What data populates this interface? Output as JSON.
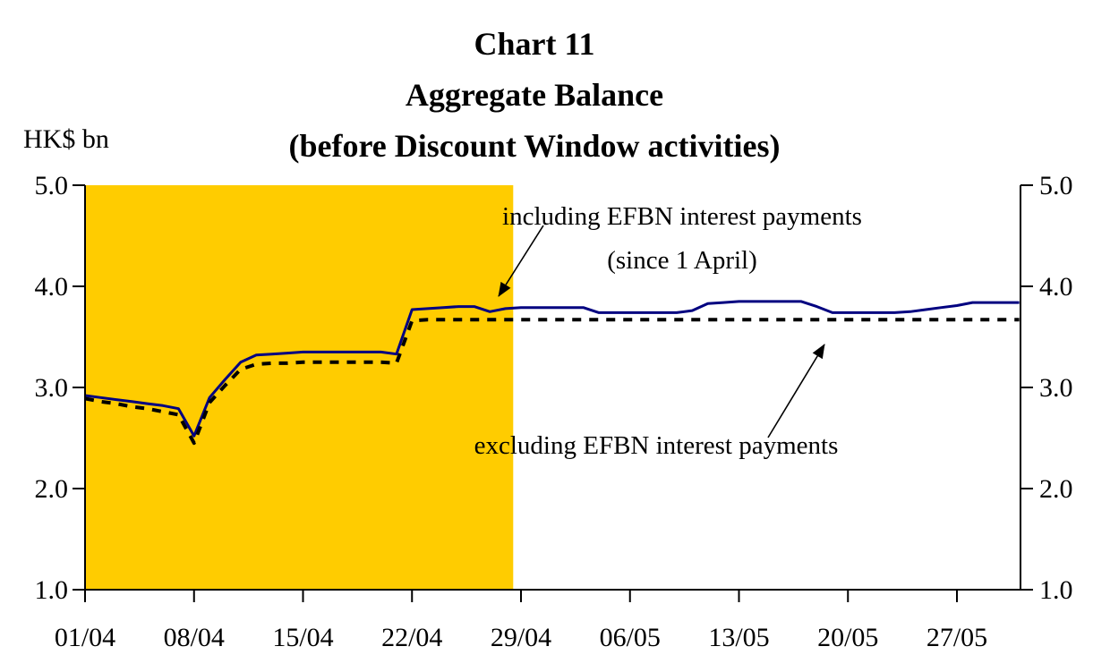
{
  "title": {
    "line1": "Chart 11",
    "line2": "Aggregate Balance",
    "line3": "(before Discount Window activities)"
  },
  "axis_unit_label": "HK$ bn",
  "annotations": {
    "including": {
      "line1": "including EFBN interest payments",
      "line2": "(since 1 April)",
      "arrow_points_to": "solid line near 28/04"
    },
    "excluding": {
      "text": "excluding EFBN interest payments",
      "arrow_points_to": "dashed line near 19/05"
    }
  },
  "chart_data": {
    "type": "line",
    "title": "Chart 11",
    "subtitle": "Aggregate Balance (before Discount Window activities)",
    "ylabel": "HK$ bn",
    "xlabel": "",
    "ylim": [
      1.0,
      5.0
    ],
    "y_tick_labels": [
      "5.0",
      "4.0",
      "3.0",
      "2.0",
      "1.0"
    ],
    "y_ticks_both_sides": true,
    "x_tick_labels": [
      "01/04",
      "08/04",
      "15/04",
      "22/04",
      "29/04",
      "06/05",
      "13/05",
      "20/05",
      "27/05"
    ],
    "x_frequency": "daily",
    "x_start_date": "01/04",
    "x_end_date": "31/05",
    "days_per_tick": 7,
    "grid": false,
    "shaded_region": {
      "color": "#FFCC00",
      "x_from_day": 0,
      "x_to_day": 27.5,
      "covers": "01/04 through ~28/04"
    },
    "series": [
      {
        "name": "including EFBN interest payments (since 1 April)",
        "line_style": "solid",
        "color": "#000080",
        "values": [
          2.92,
          2.9,
          2.88,
          2.86,
          2.84,
          2.82,
          2.79,
          2.52,
          2.9,
          3.08,
          3.25,
          3.32,
          3.33,
          3.34,
          3.35,
          3.35,
          3.35,
          3.35,
          3.35,
          3.35,
          3.33,
          3.77,
          3.78,
          3.79,
          3.8,
          3.8,
          3.75,
          3.78,
          3.79,
          3.79,
          3.79,
          3.79,
          3.79,
          3.74,
          3.74,
          3.74,
          3.74,
          3.74,
          3.74,
          3.76,
          3.83,
          3.84,
          3.85,
          3.85,
          3.85,
          3.85,
          3.85,
          3.8,
          3.74,
          3.74,
          3.74,
          3.74,
          3.74,
          3.75,
          3.77,
          3.79,
          3.81,
          3.84,
          3.84,
          3.84,
          3.84
        ]
      },
      {
        "name": "excluding EFBN interest payments",
        "line_style": "dashed",
        "color": "#000000",
        "values": [
          2.89,
          2.86,
          2.84,
          2.81,
          2.79,
          2.76,
          2.73,
          2.45,
          2.85,
          3.02,
          3.18,
          3.23,
          3.24,
          3.24,
          3.25,
          3.25,
          3.25,
          3.25,
          3.25,
          3.25,
          3.24,
          3.66,
          3.67,
          3.67,
          3.67,
          3.67,
          3.67,
          3.67,
          3.67,
          3.67,
          3.67,
          3.67,
          3.67,
          3.67,
          3.67,
          3.67,
          3.67,
          3.67,
          3.67,
          3.67,
          3.67,
          3.67,
          3.67,
          3.67,
          3.67,
          3.67,
          3.67,
          3.67,
          3.67,
          3.67,
          3.67,
          3.67,
          3.67,
          3.67,
          3.67,
          3.67,
          3.67,
          3.67,
          3.67,
          3.67,
          3.67
        ]
      }
    ]
  },
  "colors": {
    "shade": "#FFCC00",
    "including_line": "#000080",
    "excluding_line": "#000000",
    "axis": "#000000",
    "background": "#FFFFFF"
  }
}
